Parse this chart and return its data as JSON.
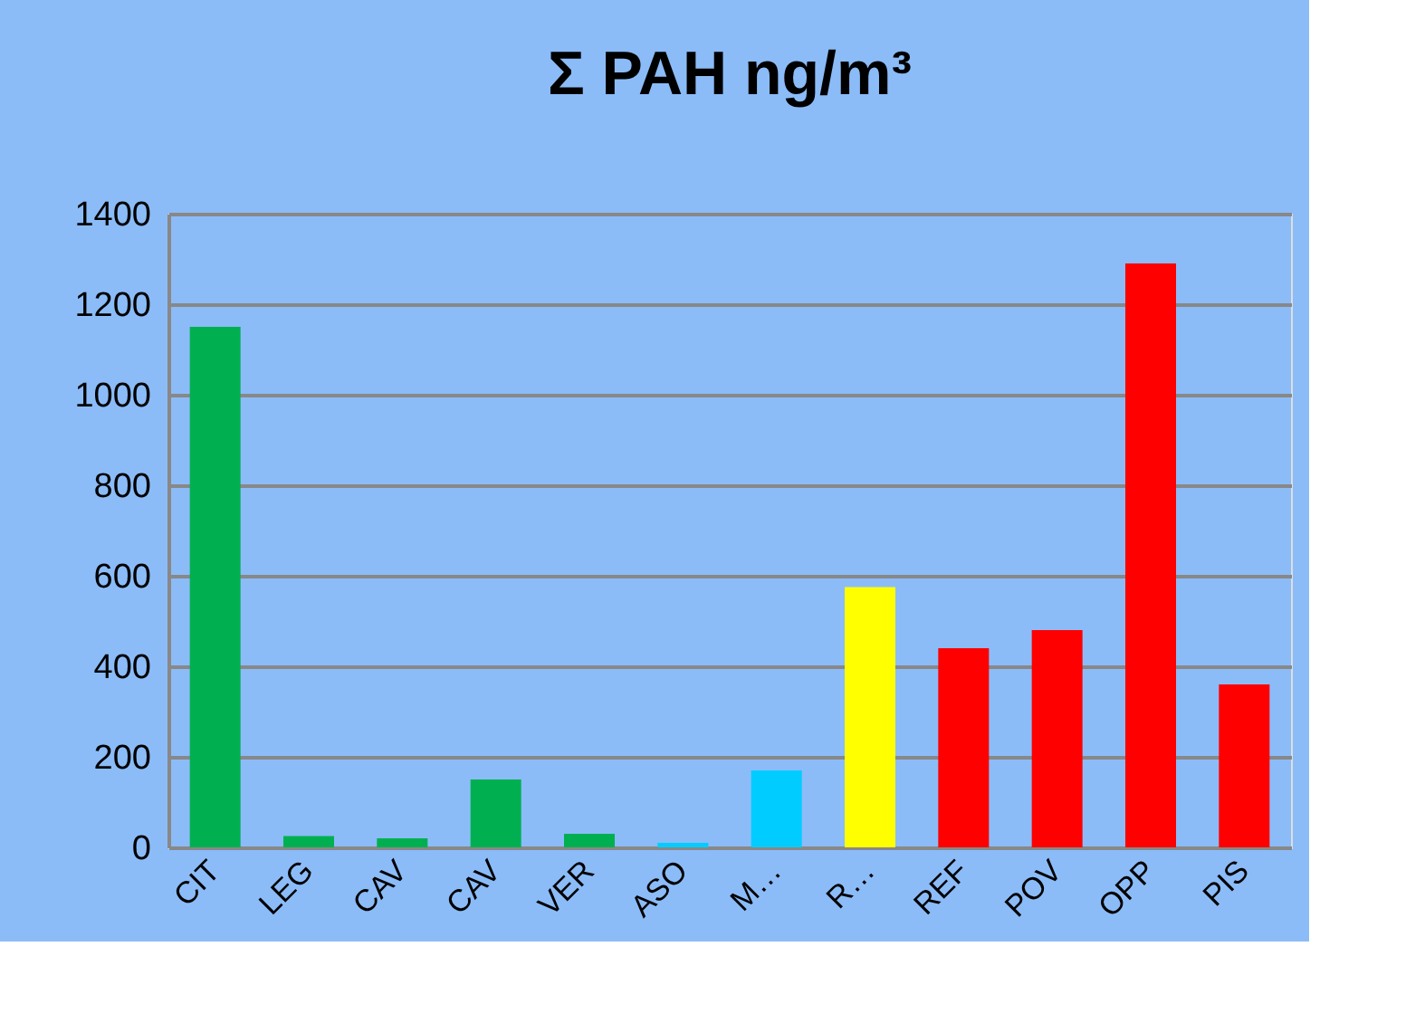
{
  "chart_data": {
    "type": "bar",
    "title": "Σ PAH ng/m³",
    "categories": [
      "CIT",
      "LEG",
      "CAV",
      "CAV",
      "VER",
      "ASO",
      "M…",
      "R…",
      "REF",
      "POV",
      "OPP",
      "PIS"
    ],
    "values": [
      1150,
      25,
      20,
      150,
      30,
      10,
      170,
      575,
      440,
      480,
      1290,
      360
    ],
    "colors": [
      "#00b050",
      "#00b050",
      "#00b050",
      "#00b050",
      "#00b050",
      "#00ccff",
      "#00ccff",
      "#ffff00",
      "#ff0000",
      "#ff0000",
      "#ff0000",
      "#ff0000"
    ],
    "ylim": [
      0,
      1400
    ],
    "yticks": [
      0,
      200,
      400,
      600,
      800,
      1000,
      1200,
      1400
    ],
    "grid": "y",
    "legend": false
  }
}
